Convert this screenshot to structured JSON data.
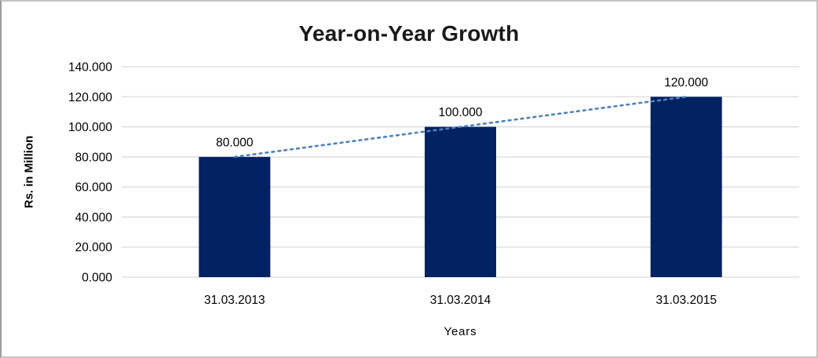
{
  "chart_data": {
    "type": "bar",
    "title": "Year-on-Year Growth",
    "xlabel": "Years",
    "ylabel": "Rs. in Million",
    "categories": [
      "31.03.2013",
      "31.03.2014",
      "31.03.2015"
    ],
    "values": [
      80,
      100,
      120
    ],
    "data_labels": [
      "80.000",
      "100.000",
      "120.000"
    ],
    "ytick_labels": [
      "0.000",
      "20.000",
      "40.000",
      "60.000",
      "80.000",
      "100.000",
      "120.000",
      "140.000"
    ],
    "ylim": [
      0,
      140
    ],
    "ytick_interval": 20,
    "grid": true,
    "legend": "none",
    "bar_color": "#032263",
    "gridline_color": "#d9d9d9",
    "trendline": {
      "type": "linear",
      "style": "dotted",
      "color": "#4f81bd"
    }
  }
}
